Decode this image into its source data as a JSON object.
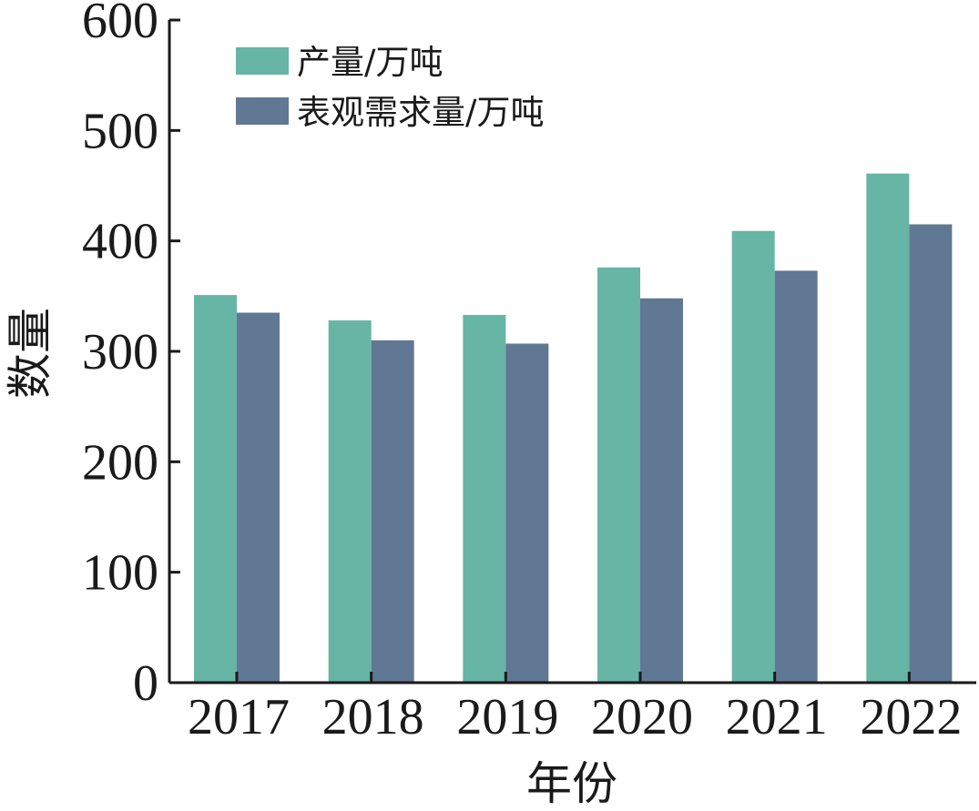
{
  "chart_data": {
    "type": "bar",
    "title": "",
    "xlabel": "年份",
    "ylabel": "数量",
    "categories": [
      "2017",
      "2018",
      "2019",
      "2020",
      "2021",
      "2022"
    ],
    "series": [
      {
        "name": "产量/万吨",
        "color": "#66b5a5",
        "values": [
          351,
          328,
          333,
          376,
          409,
          461
        ]
      },
      {
        "name": "表观需求量/万吨",
        "color": "#607894",
        "values": [
          335,
          310,
          307,
          348,
          373,
          415
        ]
      }
    ],
    "ylim": [
      0,
      600
    ],
    "yticks": [
      "0",
      "100",
      "200",
      "300",
      "400",
      "500",
      "600"
    ],
    "grid": false,
    "legend_position": "top-left"
  }
}
